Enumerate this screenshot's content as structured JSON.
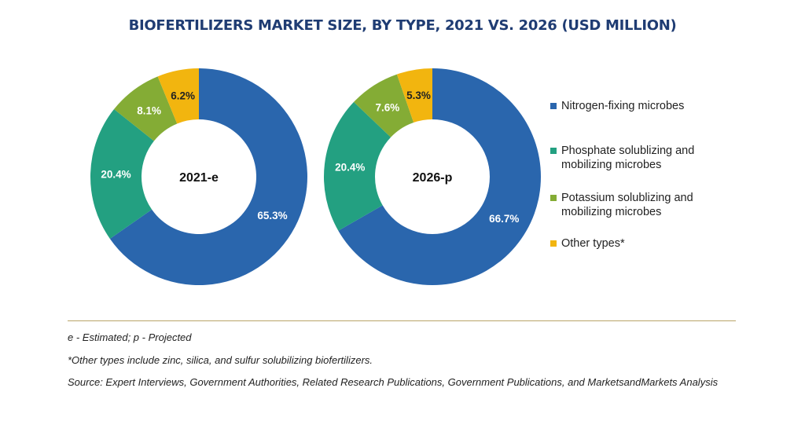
{
  "chart_data": [
    {
      "type": "pie",
      "title": "BIOFERTILIZERS MARKET SIZE, BY TYPE, 2021 VS. 2026 (USD MILLION)",
      "center_label": "2021-e",
      "categories": [
        "Nitrogen-fixing microbes",
        "Phosphate solublizing and mobilizing microbes",
        "Potassium solublizing and mobilizing microbes",
        "Other types*"
      ],
      "values": [
        65.3,
        20.4,
        8.1,
        6.2
      ],
      "value_labels": [
        "65.3%",
        "20.4%",
        "8.1%",
        "6.2%"
      ]
    },
    {
      "type": "pie",
      "title": "BIOFERTILIZERS MARKET SIZE, BY TYPE, 2021 VS. 2026 (USD MILLION)",
      "center_label": "2026-p",
      "categories": [
        "Nitrogen-fixing microbes",
        "Phosphate solublizing and mobilizing microbes",
        "Potassium solublizing and mobilizing microbes",
        "Other types*"
      ],
      "values": [
        66.7,
        20.4,
        7.6,
        5.3
      ],
      "value_labels": [
        "66.7%",
        "20.4%",
        "7.6%",
        "5.3%"
      ]
    }
  ],
  "title": "BIOFERTILIZERS MARKET SIZE, BY TYPE, 2021 VS. 2026 (USD MILLION)",
  "legend": [
    {
      "label": "Nitrogen-fixing microbes",
      "color": "#2a66ad"
    },
    {
      "label": "Phosphate solublizing and mobilizing microbes",
      "color": "#23a081"
    },
    {
      "label": "Potassium solublizing and mobilizing microbes",
      "color": "#84ac35"
    },
    {
      "label": "Other types*",
      "color": "#f2b50f"
    }
  ],
  "notes": {
    "estimated": "e - Estimated; p - Projected",
    "other_types": "*Other types include zinc, silica, and sulfur solubilizing biofertilizers.",
    "source": "Source: Expert Interviews, Government Authorities, Related Research Publications, Government Publications, and MarketsandMarkets Analysis"
  }
}
